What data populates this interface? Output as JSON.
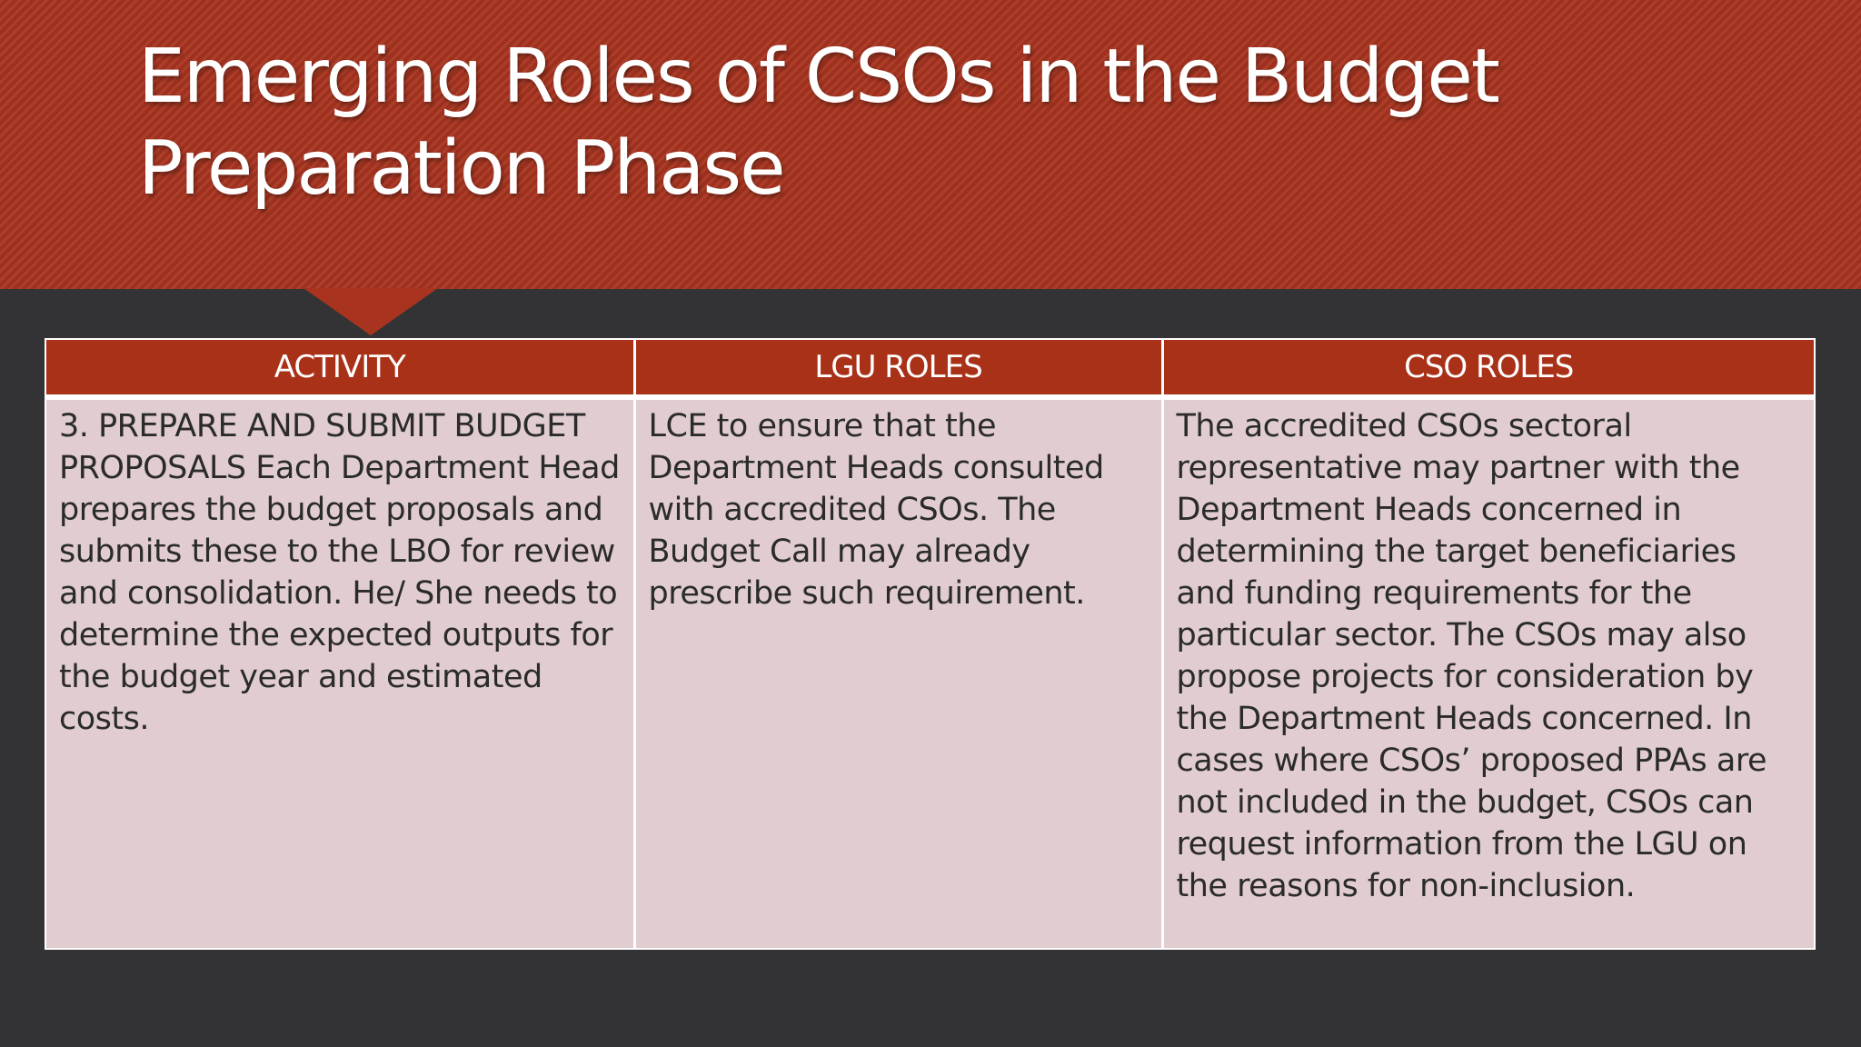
{
  "slide": {
    "title": "Emerging Roles of CSOs in the Budget Preparation Phase"
  },
  "table": {
    "headers": [
      "ACTIVITY",
      "LGU ROLES",
      "CSO ROLES"
    ],
    "rows": [
      {
        "activity": "3. PREPARE AND SUBMIT BUDGET PROPOSALS Each Department Head prepares the budget proposals and submits these to the LBO for review and consolidation. He/ She needs to determine the expected outputs for the budget year and estimated costs.",
        "lgu_roles": "LCE to ensure that the Department Heads consulted with accredited CSOs. The Budget Call may already prescribe such requirement.",
        "cso_roles": "The accredited CSOs sectoral representative may partner with the Department Heads concerned in determining the target beneficiaries and funding requirements for the particular sector. The CSOs may also propose projects for consideration by the Department Heads concerned. In cases where CSOs’ proposed PPAs are not included in the budget, CSOs can request information from the LGU on the reasons for non-inclusion."
      }
    ]
  },
  "colors": {
    "banner": "#a83420",
    "header_row": "#a83118",
    "body_cells": "#e1cdd0",
    "background": "#333335"
  }
}
